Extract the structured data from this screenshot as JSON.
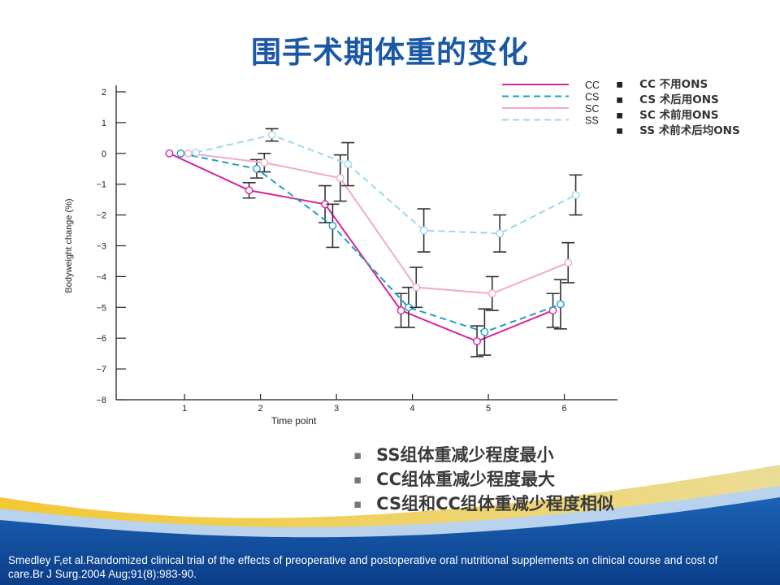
{
  "title": "围手术期体重的变化",
  "legend_notes": [
    "CC  不用ONS",
    "CS  术后用ONS",
    "SC  术前用ONS",
    "SS  术前术后均ONS"
  ],
  "conclusions": [
    "SS组体重减少程度最小",
    "CC组体重减少程度最大",
    "CS组和CC组体重减少程度相似"
  ],
  "citation": "Smedley F,et al.Randomized clinical trial of the effects of preoperative and postoperative oral nutritional supplements on clinical course and cost of care.Br J Surg.2004 Aug;91(8):983-90.",
  "chart_data": {
    "type": "line",
    "xlabel": "Time point",
    "ylabel": "Bodyweight change (%)",
    "x": [
      1,
      2,
      3,
      4,
      5,
      6
    ],
    "xlim": [
      0.1,
      6.7
    ],
    "ylim": [
      -8,
      2
    ],
    "yticks": [
      2,
      1,
      0,
      -1,
      -2,
      -3,
      -4,
      -5,
      -6,
      -7,
      -8
    ],
    "ytick_labels": [
      "2",
      "1",
      "0",
      "−1",
      "−2",
      "−3",
      "−4",
      "−5",
      "−6",
      "−7",
      "−8"
    ],
    "series": [
      {
        "name": "CC",
        "color": "#d6259a",
        "dash": "solid",
        "width": 2,
        "x": [
          0.8,
          1.85,
          2.85,
          3.85,
          4.85,
          5.85
        ],
        "y": [
          0,
          -1.2,
          -1.65,
          -5.1,
          -6.1,
          -5.1
        ],
        "err": [
          0,
          0.25,
          0.6,
          0.55,
          0.5,
          0.55
        ]
      },
      {
        "name": "CS",
        "color": "#1f9fc4",
        "dash": "8,5",
        "width": 2,
        "x": [
          0.95,
          1.95,
          2.95,
          3.95,
          4.95,
          5.95
        ],
        "y": [
          0,
          -0.5,
          -2.35,
          -5.0,
          -5.8,
          -4.9
        ],
        "err": [
          0,
          0.3,
          0.7,
          0.65,
          0.75,
          0.8
        ]
      },
      {
        "name": "SC",
        "color": "#f1aacb",
        "dash": "solid",
        "width": 2,
        "x": [
          1.05,
          2.05,
          3.05,
          4.05,
          5.05,
          6.05
        ],
        "y": [
          0,
          -0.3,
          -0.8,
          -4.35,
          -4.55,
          -3.55
        ],
        "err": [
          0,
          0.3,
          0.75,
          0.65,
          0.55,
          0.65
        ]
      },
      {
        "name": "SS",
        "color": "#9fd6ee",
        "dash": "8,5",
        "width": 2,
        "x": [
          1.15,
          2.15,
          3.15,
          4.15,
          5.15,
          6.15
        ],
        "y": [
          0.03,
          0.6,
          -0.35,
          -2.5,
          -2.6,
          -1.35
        ],
        "err": [
          0,
          0.2,
          0.7,
          0.7,
          0.6,
          0.65
        ]
      }
    ]
  }
}
